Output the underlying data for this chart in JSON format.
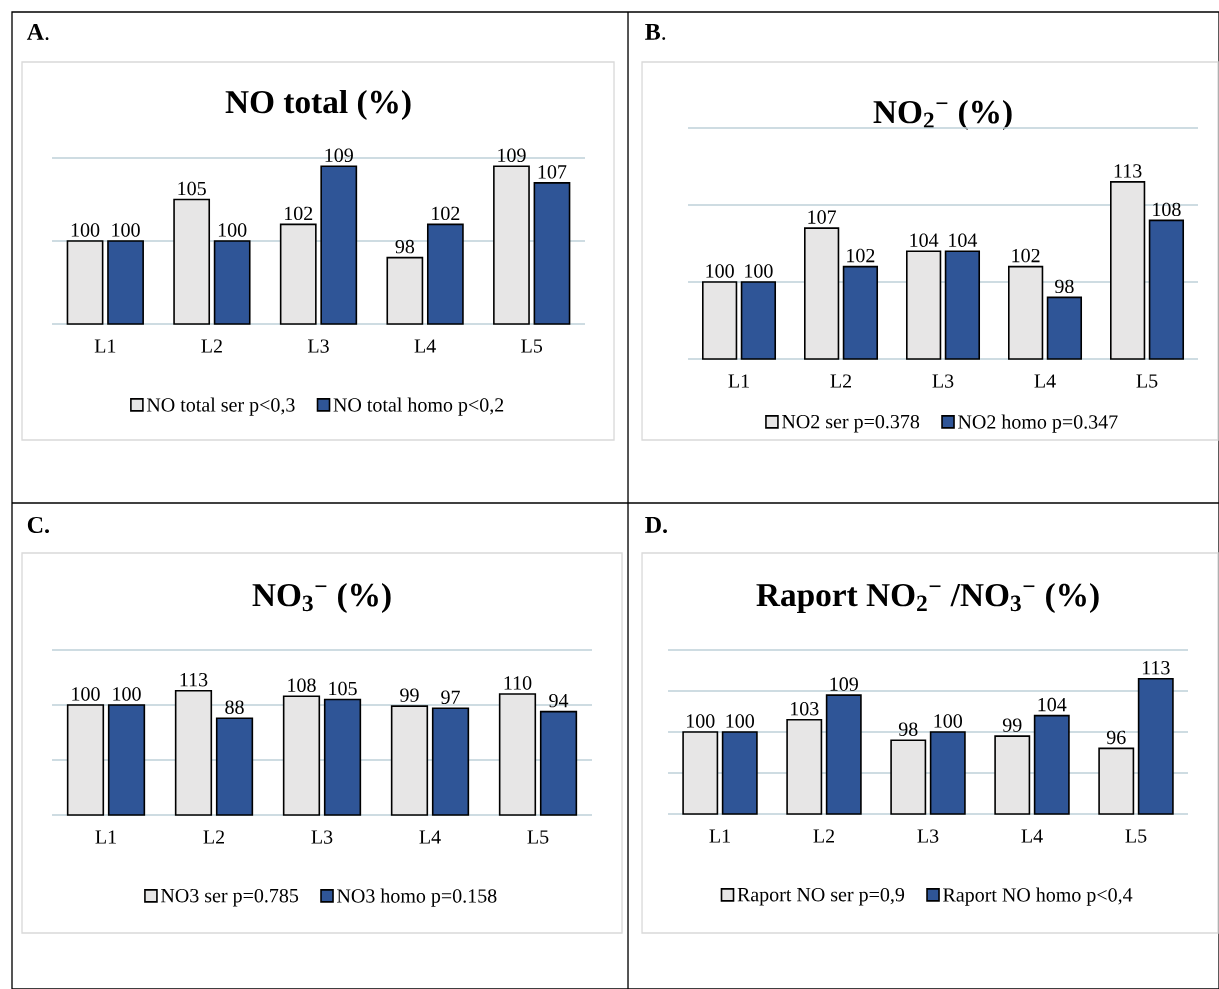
{
  "chart_data": [
    {
      "type": "bar",
      "title": "NO total (%)",
      "annotations": [
        "**A**."
      ],
      "categories": [
        "L1",
        "L2",
        "L3",
        "L4",
        "L5"
      ],
      "series": [
        {
          "name": "NO total ser p<0,3",
          "color": "#e7e6e6",
          "values": [
            100,
            105,
            102,
            98,
            109
          ]
        },
        {
          "name": "NO total homo p<0,2",
          "color": "#2f5597",
          "values": [
            100,
            100,
            109,
            102,
            107
          ]
        }
      ],
      "ylim": [
        90,
        110
      ],
      "yticks": [
        {
          "value": 90,
          "label": null
        },
        {
          "value": 100,
          "label": null
        },
        {
          "value": 110,
          "label": null
        }
      ],
      "grid": "y",
      "legend": "bottom",
      "data_labels": true,
      "tick_labels": "x"
    },
    {
      "type": "bar",
      "title": "NO$_{2}$$^{−}$ (%)",
      "annotations": [
        "**B**."
      ],
      "categories": [
        "L1",
        "L2",
        "L3",
        "L4",
        "L5"
      ],
      "series": [
        {
          "name": "NO2 ser p=0.378",
          "color": "#e7e6e6",
          "values": [
            100,
            107,
            104,
            102,
            113
          ]
        },
        {
          "name": "NO2 homo p=0.347",
          "color": "#2f5597",
          "values": [
            100,
            102,
            104,
            98,
            108
          ]
        }
      ],
      "ylim": [
        90,
        120
      ],
      "yticks": [
        {
          "value": 90,
          "label": null
        },
        {
          "value": 100,
          "label": null
        },
        {
          "value": 110,
          "label": null
        },
        {
          "value": 120,
          "label": null
        }
      ],
      "grid": "y",
      "legend": "bottom",
      "data_labels": true,
      "tick_labels": "x"
    },
    {
      "type": "bar",
      "title": "NO$_{3}$$^{−}$ (%)",
      "annotations": [
        "**C.**"
      ],
      "categories": [
        "L1",
        "L2",
        "L3",
        "L4",
        "L5"
      ],
      "series": [
        {
          "name": "NO3 ser p=0.785",
          "color": "#e7e6e6",
          "values": [
            100,
            113,
            108,
            99,
            110
          ]
        },
        {
          "name": "NO3 homo p=0.158",
          "color": "#2f5597",
          "values": [
            100,
            88,
            105,
            97,
            94
          ]
        }
      ],
      "ylim": [
        0,
        150
      ],
      "yticks": [
        {
          "value": 0,
          "label": null
        },
        {
          "value": 50,
          "label": null
        },
        {
          "value": 100,
          "label": null
        },
        {
          "value": 150,
          "label": null
        }
      ],
      "grid": "y",
      "legend": "bottom",
      "data_labels": true,
      "tick_labels": "x"
    },
    {
      "type": "bar",
      "title": "Raport NO$_{2}$$^{−}$ /NO$_{3}$$^{−}$ (%)",
      "annotations": [
        "**D.**"
      ],
      "categories": [
        "L1",
        "L2",
        "L3",
        "L4",
        "L5"
      ],
      "series": [
        {
          "name": "Raport NO ser p=0,9",
          "color": "#e7e6e6",
          "values": [
            100,
            103,
            98,
            99,
            96
          ]
        },
        {
          "name": "Raport NO homo p<0,4",
          "color": "#2f5597",
          "values": [
            100,
            109,
            100,
            104,
            113
          ]
        }
      ],
      "ylim": [
        80,
        120
      ],
      "yticks": [
        {
          "value": 80,
          "label": null
        },
        {
          "value": 90,
          "label": null
        },
        {
          "value": 100,
          "label": null
        },
        {
          "value": 110,
          "label": null
        },
        {
          "value": 120,
          "label": null
        }
      ],
      "grid": "y",
      "legend": "bottom",
      "data_labels": true,
      "tick_labels": "x"
    }
  ]
}
